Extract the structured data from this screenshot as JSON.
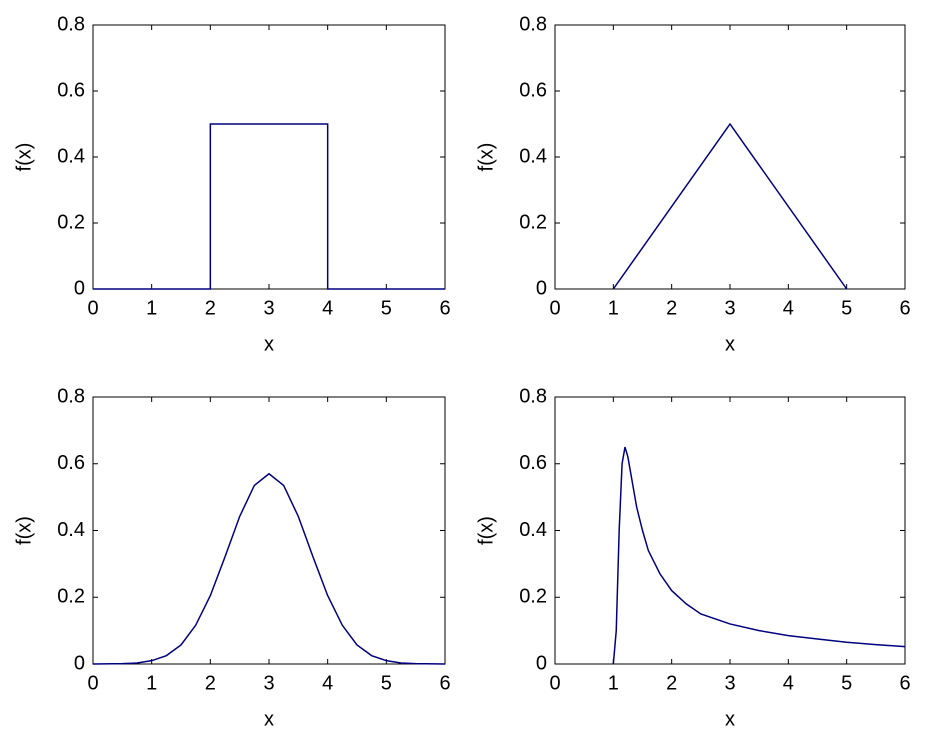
{
  "chart_data": [
    {
      "type": "line",
      "xlabel": "x",
      "ylabel": "f(x)",
      "xlim": [
        0,
        6
      ],
      "ylim": [
        0,
        0.8
      ],
      "xticks": [
        0,
        1,
        2,
        3,
        4,
        5,
        6
      ],
      "yticks": [
        0,
        0.2,
        0.4,
        0.6,
        0.8
      ],
      "series": [
        {
          "color": "#00007f",
          "x": [
            0,
            2,
            2,
            4,
            4,
            6
          ],
          "values": [
            0,
            0,
            0.5,
            0.5,
            0,
            0
          ]
        }
      ]
    },
    {
      "type": "line",
      "xlabel": "x",
      "ylabel": "f(x)",
      "xlim": [
        0,
        6
      ],
      "ylim": [
        0,
        0.8
      ],
      "xticks": [
        0,
        1,
        2,
        3,
        4,
        5,
        6
      ],
      "yticks": [
        0,
        0.2,
        0.4,
        0.6,
        0.8
      ],
      "series": [
        {
          "color": "#00007f",
          "x": [
            1,
            3,
            5
          ],
          "values": [
            0,
            0.5,
            0
          ]
        }
      ]
    },
    {
      "type": "line",
      "xlabel": "x",
      "ylabel": "f(x)",
      "xlim": [
        0,
        6
      ],
      "ylim": [
        0,
        0.8
      ],
      "xticks": [
        0,
        1,
        2,
        3,
        4,
        5,
        6
      ],
      "yticks": [
        0,
        0.2,
        0.4,
        0.6,
        0.8
      ],
      "series": [
        {
          "color": "#00007f",
          "x": [
            0,
            0.5,
            0.75,
            1,
            1.25,
            1.5,
            1.75,
            2,
            2.25,
            2.5,
            2.75,
            3,
            3.25,
            3.5,
            3.75,
            4,
            4.25,
            4.5,
            4.75,
            5,
            5.25,
            5.5,
            6
          ],
          "values": [
            0,
            0.001,
            0.003,
            0.01,
            0.025,
            0.057,
            0.116,
            0.205,
            0.321,
            0.442,
            0.535,
            0.57,
            0.535,
            0.442,
            0.321,
            0.205,
            0.116,
            0.057,
            0.025,
            0.01,
            0.003,
            0.001,
            0
          ]
        }
      ]
    },
    {
      "type": "line",
      "xlabel": "x",
      "ylabel": "f(x)",
      "xlim": [
        0,
        6
      ],
      "ylim": [
        0,
        0.8
      ],
      "xticks": [
        0,
        1,
        2,
        3,
        4,
        5,
        6
      ],
      "yticks": [
        0,
        0.2,
        0.4,
        0.6,
        0.8
      ],
      "series": [
        {
          "color": "#00007f",
          "x": [
            1,
            1.05,
            1.1,
            1.15,
            1.2,
            1.25,
            1.3,
            1.4,
            1.5,
            1.6,
            1.8,
            2,
            2.25,
            2.5,
            3,
            3.5,
            4,
            4.5,
            5,
            5.5,
            6
          ],
          "values": [
            0,
            0.1,
            0.4,
            0.6,
            0.65,
            0.62,
            0.57,
            0.47,
            0.4,
            0.34,
            0.27,
            0.22,
            0.18,
            0.15,
            0.12,
            0.1,
            0.085,
            0.075,
            0.065,
            0.058,
            0.052
          ]
        }
      ]
    }
  ]
}
